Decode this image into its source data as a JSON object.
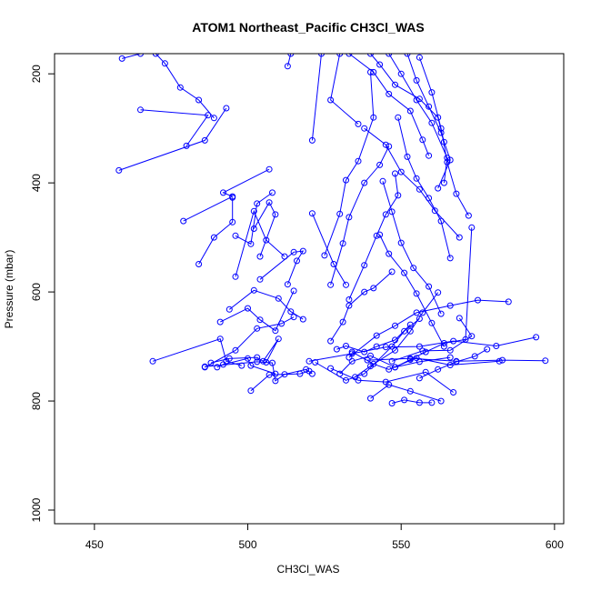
{
  "chart_data": {
    "type": "line",
    "title": "ATOM1 Northeast_Pacific CH3Cl_WAS",
    "xlabel": "CH3Cl_WAS",
    "ylabel": "Pressure (mbar)",
    "xlim": [
      437,
      603
    ],
    "ylim": [
      1025,
      163
    ],
    "x_ticks": [
      450,
      500,
      550,
      600
    ],
    "y_ticks": [
      200,
      400,
      600,
      800,
      1000
    ],
    "grid": false,
    "legend": "none",
    "colors": {
      "series": "#0000ff",
      "axis": "#000000",
      "background": "#ffffff"
    },
    "series": [
      {
        "values": [
          [
            459,
            172
          ],
          [
            465,
            163
          ]
        ]
      },
      {
        "values": [
          [
            470,
            163
          ],
          [
            473,
            181
          ],
          [
            478,
            225
          ],
          [
            484,
            248
          ],
          [
            489,
            281
          ]
        ]
      },
      {
        "values": [
          [
            458,
            377
          ],
          [
            486,
            322
          ],
          [
            493,
            263
          ]
        ]
      },
      {
        "values": [
          [
            465,
            266
          ],
          [
            487,
            276
          ],
          [
            480,
            332
          ]
        ]
      },
      {
        "values": [
          [
            479,
            470
          ],
          [
            495,
            425
          ],
          [
            492,
            418
          ],
          [
            507,
            375
          ]
        ]
      },
      {
        "values": [
          [
            484,
            549
          ],
          [
            489,
            500
          ],
          [
            495,
            472
          ],
          [
            495,
            427
          ]
        ]
      },
      {
        "values": [
          [
            496,
            497
          ],
          [
            501,
            512
          ],
          [
            503,
            438
          ],
          [
            508,
            418
          ]
        ]
      },
      {
        "values": [
          [
            502,
            484
          ],
          [
            507,
            436
          ],
          [
            509,
            458
          ],
          [
            504,
            535
          ]
        ]
      },
      {
        "values": [
          [
            496,
            572
          ],
          [
            502,
            452
          ],
          [
            506,
            505
          ],
          [
            512,
            535
          ]
        ]
      },
      {
        "values": [
          [
            504,
            577
          ],
          [
            515,
            527
          ],
          [
            518,
            525
          ],
          [
            516,
            543
          ],
          [
            513,
            586
          ]
        ]
      },
      {
        "values": [
          [
            494,
            632
          ],
          [
            502,
            597
          ],
          [
            510,
            612
          ],
          [
            514,
            636
          ],
          [
            518,
            650
          ]
        ]
      },
      {
        "values": [
          [
            491,
            655
          ],
          [
            500,
            630
          ],
          [
            504,
            651
          ],
          [
            509,
            671
          ],
          [
            515,
            598
          ]
        ]
      },
      {
        "values": [
          [
            469,
            727
          ],
          [
            491,
            686
          ],
          [
            493,
            727
          ],
          [
            498,
            735
          ]
        ]
      },
      {
        "values": [
          [
            486,
            738
          ],
          [
            496,
            707
          ],
          [
            503,
            667
          ],
          [
            511,
            658
          ],
          [
            515,
            646
          ]
        ]
      },
      {
        "values": [
          [
            488,
            730
          ],
          [
            494,
            722
          ],
          [
            503,
            720
          ],
          [
            505,
            727
          ],
          [
            510,
            686
          ],
          [
            506,
            729
          ]
        ]
      },
      {
        "values": [
          [
            486,
            737
          ],
          [
            503,
            728
          ],
          [
            508,
            730
          ],
          [
            509,
            763
          ],
          [
            512,
            751
          ],
          [
            519,
            742
          ],
          [
            521,
            750
          ]
        ]
      },
      {
        "values": [
          [
            501,
            781
          ],
          [
            507,
            752
          ],
          [
            517,
            750
          ],
          [
            520,
            745
          ]
        ]
      },
      {
        "values": [
          [
            490,
            738
          ],
          [
            492,
            733
          ],
          [
            500,
            722
          ],
          [
            501,
            735
          ],
          [
            509,
            750
          ]
        ]
      },
      {
        "values": [
          [
            513,
            186
          ],
          [
            514,
            163
          ]
        ]
      },
      {
        "values": [
          [
            521,
            322
          ],
          [
            524,
            163
          ]
        ]
      },
      {
        "values": [
          [
            530,
            163
          ],
          [
            527,
            248
          ],
          [
            536,
            292
          ]
        ]
      },
      {
        "values": [
          [
            521,
            456
          ],
          [
            528,
            549
          ],
          [
            532,
            587
          ]
        ]
      },
      {
        "values": [
          [
            525,
            533
          ],
          [
            530,
            457
          ],
          [
            532,
            395
          ],
          [
            536,
            360
          ],
          [
            541,
            280
          ],
          [
            540,
            197
          ]
        ]
      },
      {
        "values": [
          [
            527,
            587
          ],
          [
            531,
            511
          ],
          [
            533,
            463
          ],
          [
            538,
            400
          ],
          [
            543,
            367
          ],
          [
            546,
            333
          ]
        ]
      },
      {
        "values": [
          [
            533,
            614
          ],
          [
            538,
            551
          ],
          [
            542,
            497
          ],
          [
            545,
            458
          ],
          [
            549,
            423
          ],
          [
            548,
            383
          ]
        ]
      },
      {
        "values": [
          [
            527,
            690
          ],
          [
            531,
            655
          ],
          [
            533,
            625
          ],
          [
            538,
            600
          ],
          [
            541,
            593
          ],
          [
            547,
            563
          ]
        ]
      },
      {
        "values": [
          [
            529,
            705
          ],
          [
            532,
            699
          ],
          [
            538,
            710
          ],
          [
            542,
            700
          ],
          [
            548,
            688
          ],
          [
            553,
            660
          ]
        ]
      },
      {
        "values": [
          [
            530,
            750
          ],
          [
            534,
            727
          ],
          [
            540,
            717
          ],
          [
            548,
            738
          ],
          [
            556,
            728
          ],
          [
            566,
            720
          ]
        ]
      },
      {
        "values": [
          [
            522,
            729
          ],
          [
            532,
            762
          ],
          [
            538,
            750
          ],
          [
            547,
            700
          ],
          [
            551,
            672
          ],
          [
            556,
            649
          ]
        ]
      },
      {
        "values": [
          [
            527,
            740
          ],
          [
            536,
            762
          ],
          [
            545,
            765
          ],
          [
            558,
            747
          ],
          [
            567,
            784
          ]
        ]
      },
      {
        "values": [
          [
            534,
            710
          ],
          [
            541,
            732
          ],
          [
            546,
            742
          ],
          [
            555,
            721
          ],
          [
            566,
            734
          ],
          [
            582,
            727
          ]
        ]
      },
      {
        "values": [
          [
            540,
            795
          ],
          [
            546,
            770
          ],
          [
            553,
            782
          ],
          [
            563,
            800
          ]
        ]
      },
      {
        "values": [
          [
            547,
            804
          ],
          [
            551,
            798
          ],
          [
            556,
            803
          ],
          [
            560,
            803
          ]
        ]
      },
      {
        "values": [
          [
            533,
            163
          ],
          [
            541,
            197
          ],
          [
            546,
            237
          ],
          [
            553,
            268
          ],
          [
            557,
            321
          ],
          [
            559,
            350
          ]
        ]
      },
      {
        "values": [
          [
            540,
            163
          ],
          [
            543,
            183
          ],
          [
            548,
            220
          ],
          [
            556,
            246
          ],
          [
            562,
            280
          ],
          [
            564,
            325
          ]
        ]
      },
      {
        "values": [
          [
            546,
            163
          ],
          [
            550,
            200
          ],
          [
            555,
            248
          ],
          [
            560,
            290
          ],
          [
            565,
            354
          ],
          [
            564,
            400
          ]
        ]
      },
      {
        "values": [
          [
            552,
            163
          ],
          [
            555,
            212
          ],
          [
            559,
            260
          ],
          [
            563,
            308
          ],
          [
            566,
            358
          ],
          [
            562,
            410
          ]
        ]
      },
      {
        "values": [
          [
            556,
            170
          ],
          [
            560,
            234
          ],
          [
            563,
            300
          ],
          [
            565,
            362
          ],
          [
            568,
            420
          ],
          [
            572,
            460
          ]
        ]
      },
      {
        "values": [
          [
            538,
            300
          ],
          [
            545,
            330
          ],
          [
            550,
            380
          ],
          [
            556,
            412
          ],
          [
            561,
            451
          ],
          [
            569,
            500
          ]
        ]
      },
      {
        "values": [
          [
            549,
            280
          ],
          [
            552,
            352
          ],
          [
            555,
            392
          ],
          [
            559,
            428
          ],
          [
            563,
            470
          ],
          [
            566,
            538
          ]
        ]
      },
      {
        "values": [
          [
            544,
            397
          ],
          [
            547,
            453
          ],
          [
            550,
            510
          ],
          [
            554,
            556
          ],
          [
            559,
            590
          ],
          [
            563,
            640
          ]
        ]
      },
      {
        "values": [
          [
            543,
            495
          ],
          [
            546,
            530
          ],
          [
            551,
            565
          ],
          [
            555,
            603
          ],
          [
            560,
            657
          ],
          [
            564,
            700
          ]
        ]
      },
      {
        "values": [
          [
            533,
            720
          ],
          [
            542,
            680
          ],
          [
            548,
            662
          ],
          [
            555,
            638
          ],
          [
            566,
            625
          ],
          [
            575,
            615
          ],
          [
            585,
            618
          ]
        ]
      },
      {
        "values": [
          [
            520,
            727
          ],
          [
            534,
            713
          ],
          [
            545,
            701
          ],
          [
            556,
            700
          ],
          [
            567,
            690
          ],
          [
            581,
            699
          ],
          [
            594,
            683
          ]
        ]
      },
      {
        "values": [
          [
            539,
            725
          ],
          [
            553,
            722
          ],
          [
            568,
            727
          ],
          [
            583,
            725
          ],
          [
            597,
            726
          ]
        ]
      },
      {
        "values": [
          [
            547,
            727
          ],
          [
            557,
            708
          ],
          [
            566,
            707
          ],
          [
            573,
            681
          ],
          [
            569,
            648
          ]
        ]
      },
      {
        "values": [
          [
            556,
            758
          ],
          [
            562,
            742
          ],
          [
            568,
            728
          ],
          [
            574,
            718
          ],
          [
            578,
            705
          ]
        ]
      },
      {
        "values": [
          [
            548,
            738
          ],
          [
            553,
            724
          ],
          [
            558,
            710
          ],
          [
            564,
            694
          ],
          [
            571,
            687
          ],
          [
            573,
            482
          ]
        ]
      },
      {
        "values": [
          [
            535,
            756
          ],
          [
            540,
            736
          ],
          [
            548,
            707
          ],
          [
            553,
            672
          ],
          [
            557,
            638
          ],
          [
            562,
            601
          ]
        ]
      }
    ]
  }
}
